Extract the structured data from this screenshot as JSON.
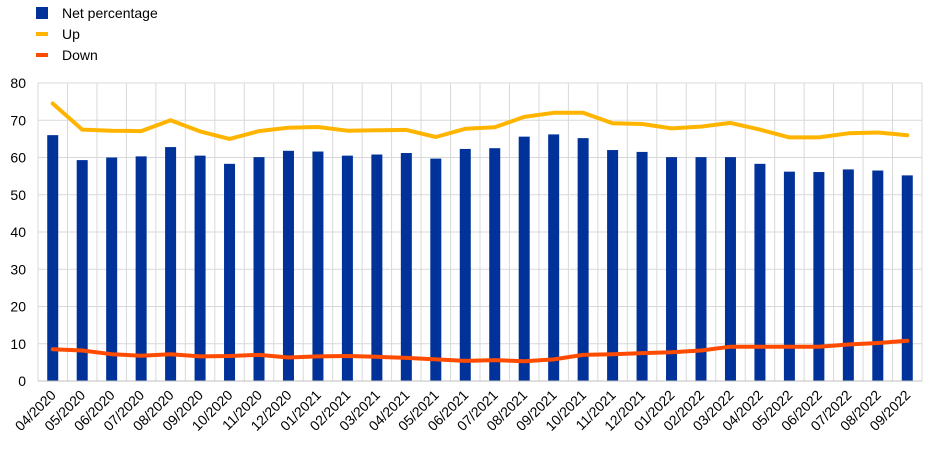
{
  "chart_data": {
    "type": "bar",
    "categories": [
      "04/2020",
      "05/2020",
      "06/2020",
      "07/2020",
      "08/2020",
      "09/2020",
      "10/2020",
      "11/2020",
      "12/2020",
      "01/2021",
      "02/2021",
      "03/2021",
      "04/2021",
      "05/2021",
      "06/2021",
      "07/2021",
      "08/2021",
      "09/2021",
      "10/2021",
      "11/2021",
      "12/2021",
      "01/2022",
      "02/2022",
      "03/2022",
      "04/2022",
      "05/2022",
      "06/2022",
      "07/2022",
      "08/2022",
      "09/2022"
    ],
    "series": [
      {
        "name": "Net percentage",
        "type": "bar",
        "color": "#003299",
        "values": [
          66,
          59.3,
          60,
          60.3,
          62.8,
          60.5,
          58.3,
          60.1,
          61.8,
          61.6,
          60.5,
          60.8,
          61.2,
          59.7,
          62.3,
          62.5,
          65.6,
          66.2,
          65.2,
          62,
          61.5,
          60.1,
          60.1,
          60.1,
          58.3,
          56.2,
          56.1,
          56.8,
          56.5,
          55.2
        ]
      },
      {
        "name": "Up",
        "type": "line",
        "color": "#FFB400",
        "values": [
          74.5,
          67.5,
          67.2,
          67.1,
          70,
          67,
          65,
          67.1,
          68,
          68.2,
          67.2,
          67.3,
          67.4,
          65.5,
          67.7,
          68.1,
          70.9,
          72,
          72,
          69.2,
          69,
          67.8,
          68.3,
          69.3,
          67.5,
          65.4,
          65.4,
          66.5,
          66.7,
          66
        ]
      },
      {
        "name": "Down",
        "type": "line",
        "color": "#FF4B00",
        "values": [
          8.5,
          8.2,
          7.2,
          6.8,
          7.2,
          6.6,
          6.7,
          7,
          6.3,
          6.6,
          6.7,
          6.5,
          6.2,
          5.8,
          5.4,
          5.6,
          5.3,
          5.8,
          7,
          7.2,
          7.5,
          7.7,
          8.2,
          9.2,
          9.2,
          9.2,
          9.2,
          9.8,
          10.2,
          10.8
        ]
      }
    ],
    "yticks": [
      "0",
      "10",
      "20",
      "30",
      "40",
      "50",
      "60",
      "70",
      "80"
    ],
    "ylim": [
      0,
      80
    ],
    "grid": true,
    "legend_position": "top-left"
  }
}
